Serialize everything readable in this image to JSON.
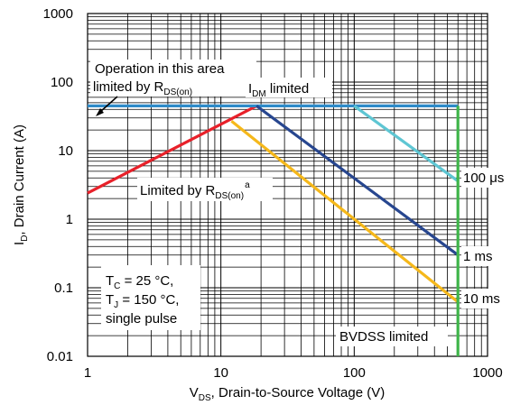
{
  "chart_data": {
    "type": "line",
    "x_scale": "log",
    "y_scale": "log",
    "xlim": [
      1,
      1000
    ],
    "ylim": [
      0.01,
      1000
    ],
    "grid": true,
    "x_ticks": [
      "1",
      "10",
      "100",
      "1000"
    ],
    "y_ticks": [
      "0.01",
      "0.1",
      "1",
      "10",
      "100",
      "1000"
    ],
    "xlabel": {
      "main": "V",
      "sub": "DS",
      "rest": ", Drain-to-Source Voltage (V)"
    },
    "ylabel": {
      "main": "I",
      "sub": "D",
      "rest": ", Drain Current (A)"
    },
    "series": [
      {
        "id": "rds-limit",
        "color": "#e8212a",
        "points": [
          [
            1,
            2.4
          ],
          [
            18.5,
            45
          ]
        ]
      },
      {
        "id": "idm-limit",
        "color": "#2e8bc9",
        "points": [
          [
            1,
            45
          ],
          [
            600,
            45
          ]
        ]
      },
      {
        "id": "100us",
        "color": "#5ec6d3",
        "points": [
          [
            100,
            45
          ],
          [
            600,
            3.6
          ]
        ]
      },
      {
        "id": "1ms",
        "color": "#27468f",
        "points": [
          [
            18.5,
            45
          ],
          [
            600,
            0.3
          ]
        ]
      },
      {
        "id": "10ms",
        "color": "#f5b81b",
        "points": [
          [
            12,
            27
          ],
          [
            600,
            0.062
          ]
        ]
      },
      {
        "id": "bvdss",
        "color": "#3fb54a",
        "points": [
          [
            600,
            45
          ],
          [
            600,
            0.01
          ]
        ]
      }
    ],
    "annotations": {
      "operation_line1": "Operation in this area",
      "operation_line2_main": "limited by R",
      "operation_line2_sub": "DS(on)",
      "idm_main": "I",
      "idm_sub": "DM",
      "idm_rest": " limited",
      "limited_main": "Limited by R",
      "limited_sub": "DS(on)",
      "limited_sup": "a",
      "label_100us": "100 μs",
      "label_1ms": "1 ms",
      "label_10ms": "10 ms",
      "bvdss": "BVDSS limited",
      "tc_main": "T",
      "tc_sub": "C",
      "tc_rest": " = 25 °C,",
      "tj_main": "T",
      "tj_sub": "J",
      "tj_rest": " = 150 °C,",
      "pulse": "single pulse"
    }
  }
}
